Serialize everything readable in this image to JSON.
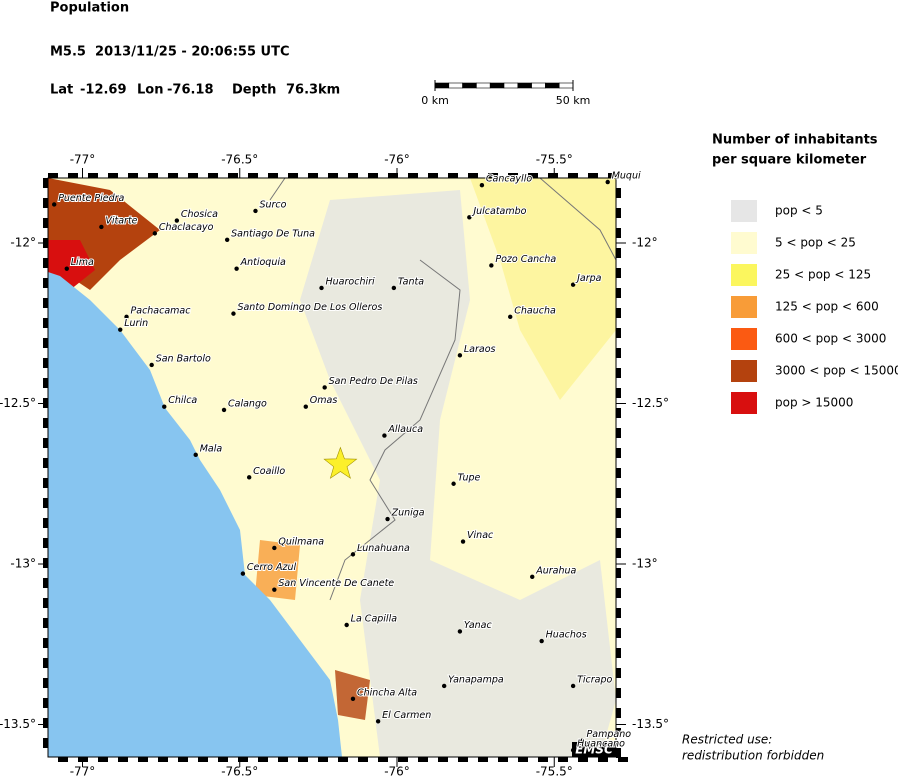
{
  "header": {
    "title": "Population",
    "event": "M5.5  2013/11/25 - 20:06:55 UTC",
    "lat_label": "Lat",
    "lat": -12.69,
    "lon_label": "Lon",
    "lon": -76.18,
    "depth_label": "Depth",
    "depth": 76.3,
    "depth_unit": "km"
  },
  "scale": {
    "ticks": [
      {
        "value": 0,
        "label": "0 km"
      },
      {
        "value": 50,
        "label": "50 km"
      }
    ]
  },
  "map": {
    "lon_ticks": [
      {
        "value": -77,
        "label": "-77°"
      },
      {
        "value": -76.5,
        "label": "-76.5°"
      },
      {
        "value": -76,
        "label": "-76°"
      },
      {
        "value": -75.5,
        "label": "-75.5°"
      }
    ],
    "lat_ticks": [
      {
        "value": -12,
        "label": "-12°"
      },
      {
        "value": -12.5,
        "label": "-12.5°"
      },
      {
        "value": -13,
        "label": "-13°"
      },
      {
        "value": -13.5,
        "label": "-13.5°"
      }
    ],
    "cities": [
      {
        "name": "Puente Piedra",
        "lon": -77.09,
        "lat": -11.88
      },
      {
        "name": "Chosica",
        "lon": -76.7,
        "lat": -11.93
      },
      {
        "name": "Chaclacayo",
        "lon": -76.77,
        "lat": -11.97
      },
      {
        "name": "Surco",
        "lon": -76.45,
        "lat": -11.9
      },
      {
        "name": "Vitarte",
        "lon": -76.94,
        "lat": -11.95
      },
      {
        "name": "Santiago De Tuna",
        "lon": -76.54,
        "lat": -11.99
      },
      {
        "name": "Lima",
        "lon": -77.05,
        "lat": -12.08
      },
      {
        "name": "Antioquia",
        "lon": -76.51,
        "lat": -12.08
      },
      {
        "name": "Huarochiri",
        "lon": -76.24,
        "lat": -12.14
      },
      {
        "name": "Tanta",
        "lon": -76.01,
        "lat": -12.14
      },
      {
        "name": "Pachacamac",
        "lon": -76.86,
        "lat": -12.23
      },
      {
        "name": "Santo Domingo De Los Olleros",
        "lon": -76.52,
        "lat": -12.22
      },
      {
        "name": "Lurin",
        "lon": -76.88,
        "lat": -12.27
      },
      {
        "name": "San Bartolo",
        "lon": -76.78,
        "lat": -12.38
      },
      {
        "name": "San Pedro De Pilas",
        "lon": -76.23,
        "lat": -12.45
      },
      {
        "name": "Chilca",
        "lon": -76.74,
        "lat": -12.51
      },
      {
        "name": "Calango",
        "lon": -76.55,
        "lat": -12.52
      },
      {
        "name": "Omas",
        "lon": -76.29,
        "lat": -12.51
      },
      {
        "name": "Allauca",
        "lon": -76.04,
        "lat": -12.6
      },
      {
        "name": "Mala",
        "lon": -76.64,
        "lat": -12.66
      },
      {
        "name": "Coaillo",
        "lon": -76.47,
        "lat": -12.73
      },
      {
        "name": "Tupe",
        "lon": -75.82,
        "lat": -12.75
      },
      {
        "name": "Zuniga",
        "lon": -76.03,
        "lat": -12.86
      },
      {
        "name": "Vinac",
        "lon": -75.79,
        "lat": -12.93
      },
      {
        "name": "Quilmana",
        "lon": -76.39,
        "lat": -12.95
      },
      {
        "name": "Lunahuana",
        "lon": -76.14,
        "lat": -12.97
      },
      {
        "name": "Cerro Azul",
        "lon": -76.49,
        "lat": -13.03
      },
      {
        "name": "Aurahua",
        "lon": -75.57,
        "lat": -13.04
      },
      {
        "name": "San Vincente De Canete",
        "lon": -76.39,
        "lat": -13.08
      },
      {
        "name": "La Capilla",
        "lon": -76.16,
        "lat": -13.19
      },
      {
        "name": "Yanac",
        "lon": -75.8,
        "lat": -13.21
      },
      {
        "name": "Huachos",
        "lon": -75.54,
        "lat": -13.24
      },
      {
        "name": "Chincha Alta",
        "lon": -76.14,
        "lat": -13.42
      },
      {
        "name": "Yanapampa",
        "lon": -75.85,
        "lat": -13.38
      },
      {
        "name": "Ticrapo",
        "lon": -75.44,
        "lat": -13.38
      },
      {
        "name": "El Carmen",
        "lon": -76.06,
        "lat": -13.49
      },
      {
        "name": "Pampano",
        "lon": -75.41,
        "lat": -13.55
      },
      {
        "name": "Huancano",
        "lon": -75.44,
        "lat": -13.58
      },
      {
        "name": "Pozo Cancha",
        "lon": -75.7,
        "lat": -12.07
      },
      {
        "name": "Jarpa",
        "lon": -75.44,
        "lat": -12.13
      },
      {
        "name": "Chaucha",
        "lon": -75.64,
        "lat": -12.23
      },
      {
        "name": "Laraos",
        "lon": -75.8,
        "lat": -12.35
      },
      {
        "name": "Julcatambo",
        "lon": -75.77,
        "lat": -11.92
      },
      {
        "name": "Cancayllo",
        "lon": -75.73,
        "lat": -11.82
      },
      {
        "name": "Muqui",
        "lon": -75.33,
        "lat": -11.81
      }
    ]
  },
  "legend": {
    "title_line1": "Number of inhabitants",
    "title_line2": "per square kilometer",
    "items": [
      {
        "label": "pop < 5",
        "color": "#e6e6e6"
      },
      {
        "label": "5 < pop < 25",
        "color": "#fffbd0"
      },
      {
        "label": "25 < pop < 125",
        "color": "#fbf65e"
      },
      {
        "label": "125 < pop < 600",
        "color": "#f89c38"
      },
      {
        "label": "600 < pop < 3000",
        "color": "#fb5a12"
      },
      {
        "label": "3000 < pop < 15000",
        "color": "#b4420e"
      },
      {
        "label": "pop > 15000",
        "color": "#d80f0f"
      }
    ]
  },
  "footer": {
    "line1": "Restricted use:",
    "line2": "redistribution forbidden",
    "brand": "EMSC"
  }
}
